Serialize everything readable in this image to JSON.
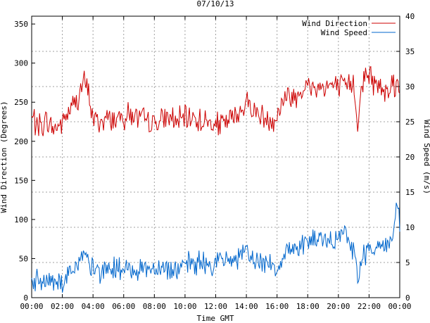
{
  "chart_data": {
    "type": "line",
    "title": "07/10/13",
    "xlabel": "Time GMT",
    "ylabel": "Wind Direction (Degrees)",
    "y2label": "Wind Speed (m/s)",
    "grid": true,
    "legend_position": "top-right",
    "x_range_hours": [
      0,
      24
    ],
    "ylim": [
      0,
      360
    ],
    "y2lim": [
      0,
      40
    ],
    "x_ticks": [
      "00:00",
      "02:00",
      "04:00",
      "06:00",
      "08:00",
      "10:00",
      "12:00",
      "14:00",
      "16:00",
      "18:00",
      "20:00",
      "22:00",
      "00:00"
    ],
    "x_tick_hours": [
      0,
      2,
      4,
      6,
      8,
      10,
      12,
      14,
      16,
      18,
      20,
      22,
      24
    ],
    "y_ticks": [
      0,
      50,
      100,
      150,
      200,
      250,
      300,
      350
    ],
    "y2_ticks": [
      0,
      5,
      10,
      15,
      20,
      25,
      30,
      35,
      40
    ],
    "colors": {
      "direction": "#cc0000",
      "speed": "#0066cc",
      "grid": "#a0a0a0",
      "axis": "#000000"
    },
    "series": [
      {
        "name": "Wind Direction",
        "axis": "left",
        "color": "#cc0000",
        "hours": [
          0,
          0.5,
          1,
          1.5,
          2,
          2.5,
          3,
          3.4,
          3.6,
          4,
          4.5,
          5,
          5.5,
          6,
          6.5,
          7,
          7.5,
          8,
          8.5,
          9,
          9.5,
          10,
          10.5,
          11,
          11.5,
          12,
          12.5,
          13,
          13.5,
          14,
          14.5,
          15,
          15.5,
          16,
          16.5,
          17,
          17.5,
          18,
          18.5,
          19,
          19.5,
          20,
          20.5,
          21,
          21.3,
          21.5,
          22,
          22.5,
          23,
          23.5,
          24
        ],
        "values": [
          230,
          220,
          225,
          215,
          225,
          240,
          255,
          275,
          270,
          230,
          225,
          230,
          228,
          232,
          235,
          228,
          225,
          222,
          226,
          230,
          225,
          228,
          232,
          226,
          224,
          220,
          222,
          228,
          235,
          250,
          240,
          232,
          228,
          230,
          260,
          255,
          265,
          270,
          268,
          270,
          272,
          268,
          270,
          275,
          215,
          280,
          285,
          270,
          268,
          275,
          272
        ]
      },
      {
        "name": "Wind Speed",
        "axis": "right",
        "color": "#0066cc",
        "hours": [
          0,
          0.5,
          1,
          1.5,
          2,
          2.5,
          3,
          3.4,
          3.6,
          4,
          4.5,
          5,
          5.5,
          6,
          6.5,
          7,
          7.5,
          8,
          8.5,
          9,
          9.5,
          10,
          10.5,
          11,
          11.5,
          12,
          12.5,
          13,
          13.5,
          14,
          14.5,
          15,
          15.5,
          16,
          16.5,
          17,
          17.5,
          18,
          18.5,
          19,
          19.5,
          20,
          20.5,
          21,
          21.3,
          21.5,
          22,
          22.5,
          23,
          23.5,
          23.8,
          24
        ],
        "values": [
          2.5,
          2,
          2.5,
          2.8,
          2,
          4,
          4.5,
          6,
          5,
          4,
          3.8,
          4,
          4.2,
          3.8,
          4,
          4.2,
          4.4,
          4,
          4.5,
          4.2,
          4,
          4.5,
          4.8,
          5,
          4.5,
          5,
          5.2,
          5.5,
          5.8,
          6,
          5.5,
          5,
          5.2,
          4,
          6.5,
          7,
          7.5,
          8,
          8.2,
          8,
          7.5,
          8.5,
          9,
          7,
          1.5,
          6,
          7,
          7.2,
          7.5,
          8,
          13,
          10
        ]
      }
    ]
  }
}
